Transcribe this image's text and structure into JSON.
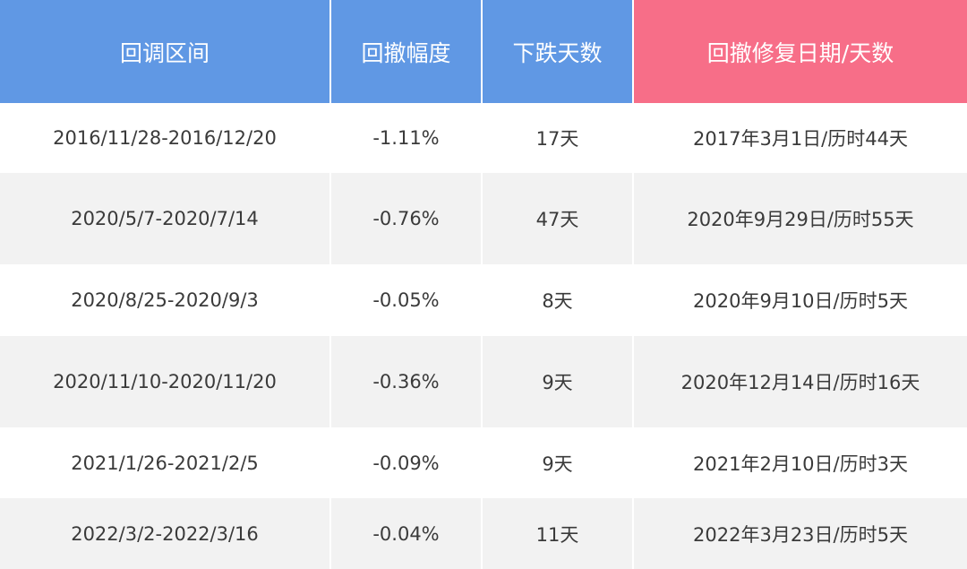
{
  "colors": {
    "header_blue": "#6098e4",
    "header_pink": "#f76e88",
    "stripe": "#f2f2f2"
  },
  "headers": [
    "回调区间",
    "回撤幅度",
    "下跌天数",
    "回撤修复日期/天数"
  ],
  "rows": [
    [
      "2016/11/28-2016/12/20",
      "-1.11%",
      "17天",
      "2017年3月1日/历时44天"
    ],
    [
      "2020/5/7-2020/7/14",
      "-0.76%",
      "47天",
      "2020年9月29日/历时55天"
    ],
    [
      "2020/8/25-2020/9/3",
      "-0.05%",
      "8天",
      "2020年9月10日/历时5天"
    ],
    [
      "2020/11/10-2020/11/20",
      "-0.36%",
      "9天",
      "2020年12月14日/历时16天"
    ],
    [
      "2021/1/26-2021/2/5",
      "-0.09%",
      "9天",
      "2021年2月10日/历时3天"
    ],
    [
      "2022/3/2-2022/3/16",
      "-0.04%",
      "11天",
      "2022年3月23日/历时5天"
    ]
  ]
}
